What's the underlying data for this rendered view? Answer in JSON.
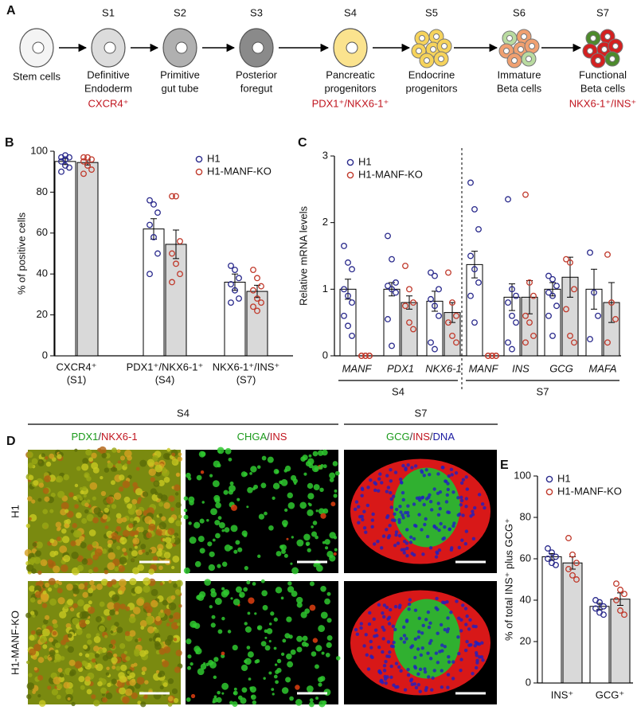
{
  "panel_a": {
    "panel": "A",
    "stages": [
      {
        "name": [
          "Stem cells"
        ]
      },
      {
        "stage": "S1",
        "name": [
          "Definitive",
          "Endoderm"
        ],
        "marker": "CXCR4⁺"
      },
      {
        "stage": "S2",
        "name": [
          "Primitive",
          "gut tube"
        ]
      },
      {
        "stage": "S3",
        "name": [
          "Posterior",
          "foregut"
        ]
      },
      {
        "stage": "S4",
        "name": [
          "Pancreatic",
          "progenitors"
        ],
        "marker": "PDX1⁺/NKX6-1⁺"
      },
      {
        "stage": "S5",
        "name": [
          "Endocrine",
          "progenitors"
        ]
      },
      {
        "stage": "S6",
        "name": [
          "Immature",
          "Beta cells"
        ]
      },
      {
        "stage": "S7",
        "name": [
          "Functional",
          "Beta cells"
        ],
        "marker": "NKX6-1⁺/INS⁺"
      }
    ]
  },
  "chart_data": [
    {
      "type": "bar",
      "panel": "B",
      "y_label": "% of positive cells",
      "categories": [
        [
          "CXCR4⁺",
          "(S1)"
        ],
        [
          "PDX1⁺/NKX6-1⁺",
          "(S4)"
        ],
        [
          "NKX6-1⁺/INS⁺",
          "(S7)"
        ]
      ],
      "ylim": [
        0,
        100
      ],
      "yticks": [
        0,
        20,
        40,
        60,
        80,
        100
      ],
      "legend": "upper right",
      "series": [
        {
          "name": "H1",
          "color": "#2a2a8c",
          "bar_color": "#ffffff",
          "values": [
            95,
            62,
            36
          ],
          "errors": [
            1.5,
            5,
            4
          ],
          "points": [
            [
              97,
              98,
              97,
              95,
              93,
              92,
              90,
              96
            ],
            [
              76,
              74,
              70,
              64,
              58,
              50,
              40
            ],
            [
              44,
              42,
              38,
              35,
              32,
              28,
              26
            ]
          ]
        },
        {
          "name": "H1-MANF-KO",
          "color": "#c0392b",
          "bar_color": "#d9d9d9",
          "values": [
            94.5,
            54.5,
            31.5
          ],
          "errors": [
            1.2,
            7,
            3
          ],
          "points": [
            [
              97,
              97,
              96,
              95,
              93,
              91,
              89
            ],
            [
              78,
              78,
              56,
              50,
              45,
              40,
              36
            ],
            [
              42,
              38,
              34,
              32,
              28,
              26,
              24,
              22
            ]
          ]
        }
      ]
    },
    {
      "type": "bar",
      "panel": "C",
      "y_label": "Relative mRNA levels",
      "categories": [
        "MANF",
        "PDX1",
        "NKX6-1",
        "MANF",
        "INS",
        "GCG",
        "MAFA"
      ],
      "groups": [
        "S4",
        "S7"
      ],
      "ylim": [
        0,
        3
      ],
      "yticks": [
        0,
        1,
        2,
        3
      ],
      "legend": "upper left",
      "series": [
        {
          "name": "H1",
          "color": "#2a2a8c",
          "bar_color": "#ffffff",
          "values": [
            1.0,
            1.0,
            0.82,
            1.37,
            0.88,
            1.0,
            1.0
          ],
          "errors": [
            0.15,
            0.1,
            0.15,
            0.2,
            0.2,
            0.1,
            0.3
          ],
          "points": [
            [
              1.65,
              1.4,
              1.3,
              1.0,
              0.9,
              0.8,
              0.6,
              0.45,
              0.3
            ],
            [
              1.8,
              1.45,
              1.1,
              1.05,
              1.0,
              0.95,
              0.55,
              0.15
            ],
            [
              1.25,
              1.2,
              1.0,
              0.85,
              0.75,
              0.6,
              0.2,
              0.1
            ],
            [
              2.6,
              2.2,
              1.9,
              1.5,
              1.3,
              1.1,
              0.9,
              0.5
            ],
            [
              2.35,
              1.0,
              0.9,
              0.8,
              0.6,
              0.5,
              0.2,
              0.1
            ],
            [
              1.2,
              1.15,
              1.05,
              0.95,
              0.9,
              0.75,
              0.6,
              0.3
            ],
            [
              1.55,
              0.95,
              0.6,
              0.25
            ]
          ]
        },
        {
          "name": "H1-MANF-KO",
          "color": "#c0392b",
          "bar_color": "#d9d9d9",
          "values": [
            0,
            0.8,
            0.65,
            0,
            0.88,
            1.18,
            0.8
          ],
          "errors": [
            0,
            0.1,
            0.15,
            0,
            0.25,
            0.3,
            0.3
          ],
          "points": [
            [
              0,
              0,
              0,
              0,
              0,
              0
            ],
            [
              1.35,
              1.0,
              0.8,
              0.75,
              0.5,
              0.4
            ],
            [
              1.25,
              0.8,
              0.6,
              0.5,
              0.3,
              0.2
            ],
            [
              0,
              0,
              0,
              0,
              0,
              0
            ],
            [
              2.42,
              1.1,
              0.9,
              0.6,
              0.5,
              0.3,
              0.2
            ],
            [
              1.45,
              1.4,
              1.0,
              0.7,
              0.3,
              0.2
            ],
            [
              1.52,
              0.8,
              0.55,
              0.2
            ]
          ]
        }
      ]
    },
    {
      "type": "bar",
      "panel": "E",
      "y_label": "% of total INS⁺ plus GCG⁺",
      "categories": [
        "INS⁺",
        "GCG⁺"
      ],
      "ylim": [
        0,
        100
      ],
      "yticks": [
        0,
        20,
        40,
        60,
        80,
        100
      ],
      "legend": "upper left",
      "series": [
        {
          "name": "H1",
          "color": "#2a2a8c",
          "bar_color": "#ffffff",
          "values": [
            61,
            37
          ],
          "errors": [
            1.5,
            1.5
          ],
          "points": [
            [
              65,
              63,
              61,
              60,
              58,
              57
            ],
            [
              40,
              39,
              37,
              36,
              34,
              33
            ]
          ]
        },
        {
          "name": "H1-MANF-KO",
          "color": "#c0392b",
          "bar_color": "#d9d9d9",
          "values": [
            58,
            40.5
          ],
          "errors": [
            3,
            3
          ],
          "points": [
            [
              70,
              62,
              58,
              55,
              52,
              50
            ],
            [
              48,
              45,
              43,
              40,
              35,
              33
            ]
          ]
        }
      ]
    }
  ],
  "panel_d": {
    "panel": "D",
    "stages": [
      "S4",
      "S7"
    ],
    "columns": [
      {
        "parts": [
          "PDX1",
          "/",
          "NKX6-1"
        ],
        "colors": [
          "#1a9a1a",
          "#333333",
          "#c0141e"
        ]
      },
      {
        "parts": [
          "CHGA",
          "/",
          "INS"
        ],
        "colors": [
          "#1a9a1a",
          "#333333",
          "#c0141e"
        ]
      },
      {
        "parts": [
          "GCG",
          "/",
          "INS",
          "/",
          "DNA"
        ],
        "colors": [
          "#1a9a1a",
          "#333333",
          "#c0141e",
          "#333333",
          "#1a1aa0"
        ]
      }
    ],
    "rows": [
      "H1",
      "H1-MANF-KO"
    ]
  }
}
